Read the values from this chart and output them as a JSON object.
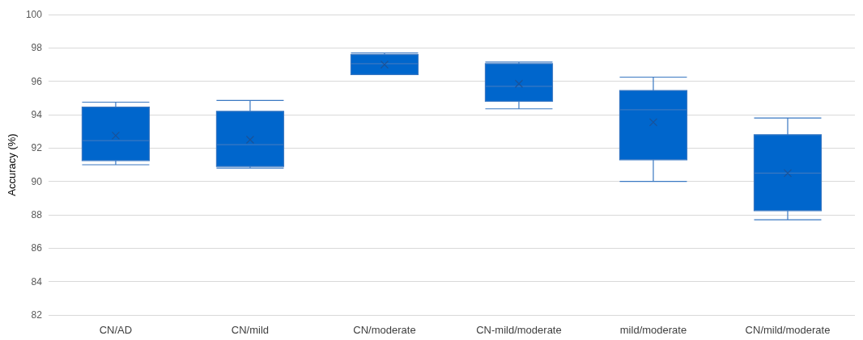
{
  "chart_data": {
    "type": "box",
    "ylabel": "Accuracy (%)",
    "categories": [
      "CN/AD",
      "CN/mild",
      "CN/moderate",
      "CN-mild/moderate",
      "mild/moderate",
      "CN/mild/moderate"
    ],
    "boxes": [
      {
        "low": 91.0,
        "q1": 91.25,
        "median": 92.45,
        "q3": 94.45,
        "high": 94.75,
        "mean": 92.75
      },
      {
        "low": 90.8,
        "q1": 90.9,
        "median": 92.2,
        "q3": 94.2,
        "high": 94.85,
        "mean": 92.5
      },
      {
        "low": 96.4,
        "q1": 96.4,
        "median": 97.05,
        "q3": 97.6,
        "high": 97.7,
        "mean": 97.0
      },
      {
        "low": 94.35,
        "q1": 94.8,
        "median": 95.7,
        "q3": 97.05,
        "high": 97.15,
        "mean": 95.85
      },
      {
        "low": 90.0,
        "q1": 91.3,
        "median": 94.3,
        "q3": 95.45,
        "high": 96.25,
        "mean": 93.55
      },
      {
        "low": 87.7,
        "q1": 88.25,
        "median": 90.5,
        "q3": 92.8,
        "high": 93.8,
        "mean": 90.5
      }
    ],
    "color": "#0066cc",
    "ylim": [
      82,
      100
    ],
    "yticks": [
      82,
      84,
      86,
      88,
      90,
      92,
      94,
      96,
      98,
      100
    ],
    "grid": "y",
    "marker": "cross"
  }
}
